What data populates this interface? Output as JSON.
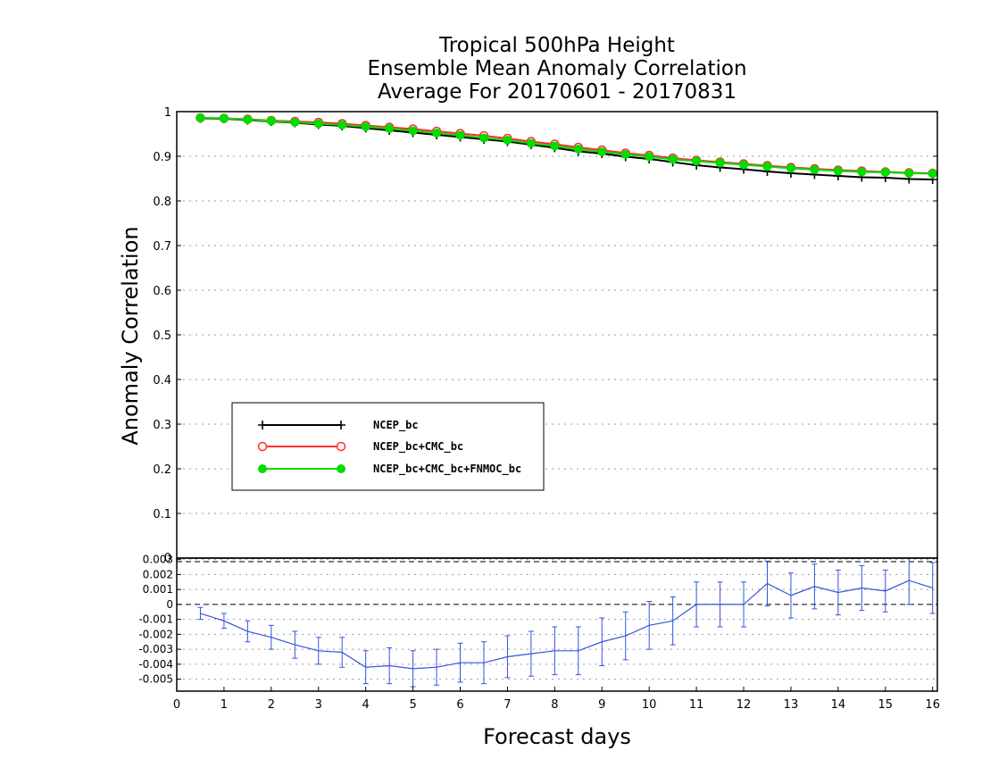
{
  "chart_data": {
    "type": "line",
    "title": [
      "Tropical 500hPa Height",
      "Ensemble Mean Anomaly Correlation",
      "Average For 20170601 - 20170831"
    ],
    "xlabel": "Forecast days",
    "ylabel": "Anomaly Correlation",
    "xlim": [
      0,
      16.1
    ],
    "xticks": [
      "0",
      "1",
      "2",
      "3",
      "4",
      "5",
      "6",
      "7",
      "8",
      "9",
      "10",
      "11",
      "12",
      "13",
      "14",
      "15",
      "16"
    ],
    "top_panel": {
      "ylim": [
        0,
        1
      ],
      "yticks": [
        "0.1",
        "0.2",
        "0.3",
        "0.4",
        "0.5",
        "0.6",
        "0.7",
        "0.8",
        "0.9",
        "1"
      ],
      "y_zero_label": "0",
      "x": [
        0.5,
        1,
        1.5,
        2,
        2.5,
        3,
        3.5,
        4,
        4.5,
        5,
        5.5,
        6,
        6.5,
        7,
        7.5,
        8,
        8.5,
        9,
        9.5,
        10,
        10.5,
        11,
        11.5,
        12,
        12.5,
        13,
        13.5,
        14,
        14.5,
        15,
        15.5,
        16
      ],
      "series": [
        {
          "name": "NCEP_bc",
          "color": "#000000",
          "marker": "plus",
          "values": [
            0.985,
            0.984,
            0.981,
            0.978,
            0.975,
            0.971,
            0.968,
            0.963,
            0.958,
            0.953,
            0.948,
            0.943,
            0.938,
            0.933,
            0.926,
            0.919,
            0.911,
            0.906,
            0.899,
            0.894,
            0.887,
            0.88,
            0.875,
            0.871,
            0.866,
            0.862,
            0.859,
            0.856,
            0.853,
            0.852,
            0.849,
            0.848
          ]
        },
        {
          "name": "NCEP_bc+CMC_bc",
          "color": "#ff3030",
          "marker": "open-circle",
          "values": [
            0.986,
            0.985,
            0.983,
            0.98,
            0.978,
            0.976,
            0.973,
            0.969,
            0.965,
            0.961,
            0.956,
            0.951,
            0.946,
            0.94,
            0.933,
            0.927,
            0.92,
            0.914,
            0.907,
            0.902,
            0.896,
            0.891,
            0.887,
            0.883,
            0.879,
            0.875,
            0.872,
            0.869,
            0.867,
            0.865,
            0.863,
            0.862
          ]
        },
        {
          "name": "NCEP_bc+CMC_bc+FNMOC_bc",
          "color": "#00dd00",
          "marker": "filled-circle",
          "values": [
            0.986,
            0.985,
            0.982,
            0.979,
            0.976,
            0.973,
            0.97,
            0.966,
            0.962,
            0.957,
            0.952,
            0.947,
            0.941,
            0.936,
            0.929,
            0.923,
            0.916,
            0.91,
            0.904,
            0.899,
            0.893,
            0.889,
            0.885,
            0.881,
            0.877,
            0.873,
            0.87,
            0.867,
            0.865,
            0.864,
            0.862,
            0.861
          ]
        }
      ]
    },
    "bottom_panel": {
      "ylim": [
        -0.0058,
        0.0031
      ],
      "yticks": [
        "-0.005",
        "-0.004",
        "-0.003",
        "-0.002",
        "-0.001",
        "0",
        "0.001",
        "0.002",
        "0.003"
      ],
      "color": "#3355dd",
      "x": [
        0.5,
        1,
        1.5,
        2,
        2.5,
        3,
        3.5,
        4,
        4.5,
        5,
        5.5,
        6,
        6.5,
        7,
        7.5,
        8,
        8.5,
        9,
        9.5,
        10,
        10.5,
        11,
        11.5,
        12,
        12.5,
        13,
        13.5,
        14,
        14.5,
        15,
        15.5,
        16
      ],
      "values": [
        -0.0006,
        -0.0011,
        -0.0018,
        -0.0022,
        -0.0027,
        -0.0031,
        -0.0032,
        -0.0042,
        -0.0041,
        -0.0043,
        -0.0042,
        -0.0039,
        -0.0039,
        -0.0035,
        -0.0033,
        -0.0031,
        -0.0031,
        -0.0025,
        -0.0021,
        -0.0014,
        -0.0011,
        0.0,
        0.0,
        0.0,
        0.0014,
        0.0006,
        0.0012,
        0.0008,
        0.0011,
        0.0009,
        0.0016,
        0.0011
      ],
      "errors": [
        0.0004,
        0.0005,
        0.0007,
        0.0008,
        0.0009,
        0.0009,
        0.001,
        0.0011,
        0.0012,
        0.0012,
        0.0012,
        0.0013,
        0.0014,
        0.0014,
        0.0015,
        0.0016,
        0.0016,
        0.0016,
        0.0016,
        0.0016,
        0.0016,
        0.0015,
        0.0015,
        0.0015,
        0.0015,
        0.0015,
        0.0015,
        0.0015,
        0.0015,
        0.0014,
        0.0016,
        0.0017
      ]
    },
    "legend": {
      "placement": "lower-left"
    }
  }
}
